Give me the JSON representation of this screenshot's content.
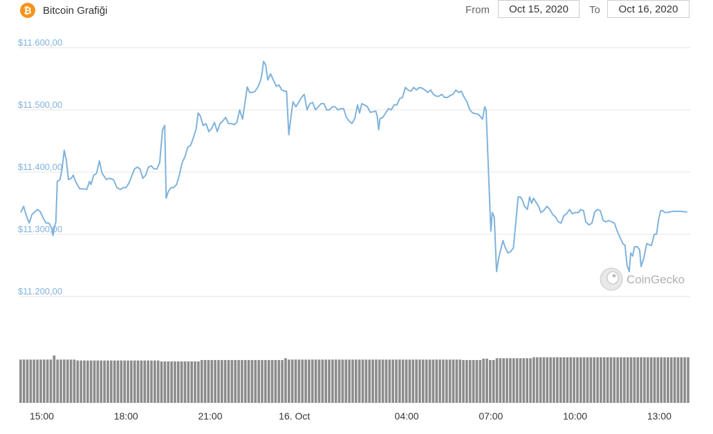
{
  "header": {
    "coin_icon_symbol": "₿",
    "title": "Bitcoin Grafiği",
    "from_label": "From",
    "from_value": "Oct 15, 2020",
    "to_label": "To",
    "to_value": "Oct 16, 2020"
  },
  "watermark": {
    "text": "CoinGecko",
    "icon": "gecko-logo-icon"
  },
  "colors": {
    "line": "#7fb2dc",
    "grid": "#e6e6e6",
    "volume": "#8c8c8c",
    "accent": "#f7931a"
  },
  "chart_data": {
    "type": "line",
    "ylim": [
      11200,
      11600
    ],
    "yticks": [
      {
        "value": 11600,
        "label": "$11.600,00"
      },
      {
        "value": 11500,
        "label": "$11.500,00"
      },
      {
        "value": 11400,
        "label": "$11.400,00"
      },
      {
        "value": 11300,
        "label": "$11.300,00"
      },
      {
        "value": 11200,
        "label": "$11.200,00"
      }
    ],
    "xlim": [
      14.2,
      38.1
    ],
    "xticks": [
      {
        "value": 15,
        "label": "15:00"
      },
      {
        "value": 18,
        "label": "18:00"
      },
      {
        "value": 21,
        "label": "21:00"
      },
      {
        "value": 24,
        "label": "16. Oct"
      },
      {
        "value": 28,
        "label": "04:00"
      },
      {
        "value": 31,
        "label": "07:00"
      },
      {
        "value": 34,
        "label": "10:00"
      },
      {
        "value": 37,
        "label": "13:00"
      }
    ],
    "grid": true,
    "series": [
      {
        "values": [
          [
            14.25,
            11335
          ],
          [
            14.35,
            11345
          ],
          [
            14.45,
            11330
          ],
          [
            14.55,
            11318
          ],
          [
            14.65,
            11332
          ],
          [
            14.75,
            11336
          ],
          [
            14.85,
            11340
          ],
          [
            14.95,
            11336
          ],
          [
            15.05,
            11326
          ],
          [
            15.15,
            11318
          ],
          [
            15.25,
            11318
          ],
          [
            15.35,
            11310
          ],
          [
            15.4,
            11298
          ],
          [
            15.45,
            11312
          ],
          [
            15.5,
            11320
          ],
          [
            15.55,
            11385
          ],
          [
            15.65,
            11388
          ],
          [
            15.72,
            11405
          ],
          [
            15.8,
            11435
          ],
          [
            15.87,
            11420
          ],
          [
            15.95,
            11388
          ],
          [
            16.05,
            11390
          ],
          [
            16.12,
            11395
          ],
          [
            16.2,
            11385
          ],
          [
            16.35,
            11373
          ],
          [
            16.5,
            11373
          ],
          [
            16.6,
            11372
          ],
          [
            16.7,
            11385
          ],
          [
            16.75,
            11380
          ],
          [
            16.85,
            11395
          ],
          [
            16.95,
            11398
          ],
          [
            17.05,
            11418
          ],
          [
            17.15,
            11398
          ],
          [
            17.3,
            11388
          ],
          [
            17.4,
            11390
          ],
          [
            17.55,
            11388
          ],
          [
            17.68,
            11375
          ],
          [
            17.8,
            11372
          ],
          [
            17.9,
            11375
          ],
          [
            18.0,
            11375
          ],
          [
            18.1,
            11382
          ],
          [
            18.2,
            11393
          ],
          [
            18.3,
            11405
          ],
          [
            18.4,
            11408
          ],
          [
            18.5,
            11405
          ],
          [
            18.6,
            11390
          ],
          [
            18.7,
            11395
          ],
          [
            18.8,
            11408
          ],
          [
            18.9,
            11410
          ],
          [
            19.0,
            11405
          ],
          [
            19.1,
            11405
          ],
          [
            19.2,
            11415
          ],
          [
            19.3,
            11468
          ],
          [
            19.38,
            11475
          ],
          [
            19.43,
            11358
          ],
          [
            19.5,
            11368
          ],
          [
            19.6,
            11375
          ],
          [
            19.7,
            11375
          ],
          [
            19.8,
            11380
          ],
          [
            19.9,
            11395
          ],
          [
            20.0,
            11415
          ],
          [
            20.1,
            11425
          ],
          [
            20.2,
            11440
          ],
          [
            20.3,
            11443
          ],
          [
            20.4,
            11455
          ],
          [
            20.5,
            11470
          ],
          [
            20.57,
            11495
          ],
          [
            20.65,
            11490
          ],
          [
            20.75,
            11475
          ],
          [
            20.85,
            11478
          ],
          [
            20.95,
            11465
          ],
          [
            21.05,
            11470
          ],
          [
            21.15,
            11480
          ],
          [
            21.25,
            11465
          ],
          [
            21.35,
            11478
          ],
          [
            21.45,
            11482
          ],
          [
            21.55,
            11488
          ],
          [
            21.65,
            11478
          ],
          [
            21.75,
            11478
          ],
          [
            21.85,
            11476
          ],
          [
            21.95,
            11480
          ],
          [
            22.05,
            11500
          ],
          [
            22.15,
            11485
          ],
          [
            22.25,
            11515
          ],
          [
            22.32,
            11537
          ],
          [
            22.4,
            11528
          ],
          [
            22.5,
            11528
          ],
          [
            22.6,
            11530
          ],
          [
            22.7,
            11537
          ],
          [
            22.8,
            11548
          ],
          [
            22.85,
            11560
          ],
          [
            22.9,
            11578
          ],
          [
            22.98,
            11572
          ],
          [
            23.05,
            11548
          ],
          [
            23.15,
            11558
          ],
          [
            23.25,
            11548
          ],
          [
            23.35,
            11538
          ],
          [
            23.45,
            11540
          ],
          [
            23.55,
            11532
          ],
          [
            23.65,
            11530
          ],
          [
            23.72,
            11530
          ],
          [
            23.8,
            11460
          ],
          [
            23.88,
            11490
          ],
          [
            23.95,
            11513
          ],
          [
            24.05,
            11505
          ],
          [
            24.15,
            11512
          ],
          [
            24.25,
            11520
          ],
          [
            24.35,
            11525
          ],
          [
            24.45,
            11500
          ],
          [
            24.55,
            11510
          ],
          [
            24.65,
            11512
          ],
          [
            24.75,
            11500
          ],
          [
            24.85,
            11505
          ],
          [
            24.95,
            11510
          ],
          [
            25.05,
            11510
          ],
          [
            25.15,
            11500
          ],
          [
            25.25,
            11500
          ],
          [
            25.35,
            11505
          ],
          [
            25.45,
            11505
          ],
          [
            25.55,
            11500
          ],
          [
            25.65,
            11502
          ],
          [
            25.75,
            11502
          ],
          [
            25.85,
            11488
          ],
          [
            25.95,
            11482
          ],
          [
            26.05,
            11478
          ],
          [
            26.15,
            11486
          ],
          [
            26.25,
            11508
          ],
          [
            26.32,
            11495
          ],
          [
            26.4,
            11510
          ],
          [
            26.5,
            11508
          ],
          [
            26.6,
            11505
          ],
          [
            26.7,
            11496
          ],
          [
            26.8,
            11497
          ],
          [
            26.9,
            11498
          ],
          [
            26.95,
            11490
          ],
          [
            27.0,
            11468
          ],
          [
            27.05,
            11486
          ],
          [
            27.15,
            11488
          ],
          [
            27.25,
            11495
          ],
          [
            27.35,
            11502
          ],
          [
            27.45,
            11500
          ],
          [
            27.55,
            11508
          ],
          [
            27.65,
            11508
          ],
          [
            27.75,
            11518
          ],
          [
            27.85,
            11520
          ],
          [
            27.95,
            11536
          ],
          [
            28.05,
            11532
          ],
          [
            28.15,
            11530
          ],
          [
            28.25,
            11536
          ],
          [
            28.35,
            11532
          ],
          [
            28.45,
            11536
          ],
          [
            28.55,
            11535
          ],
          [
            28.65,
            11532
          ],
          [
            28.75,
            11528
          ],
          [
            28.85,
            11532
          ],
          [
            28.95,
            11525
          ],
          [
            29.05,
            11522
          ],
          [
            29.15,
            11522
          ],
          [
            29.25,
            11525
          ],
          [
            29.35,
            11520
          ],
          [
            29.45,
            11520
          ],
          [
            29.55,
            11523
          ],
          [
            29.65,
            11525
          ],
          [
            29.75,
            11532
          ],
          [
            29.85,
            11528
          ],
          [
            29.95,
            11530
          ],
          [
            30.05,
            11520
          ],
          [
            30.15,
            11513
          ],
          [
            30.25,
            11500
          ],
          [
            30.35,
            11495
          ],
          [
            30.45,
            11494
          ],
          [
            30.55,
            11493
          ],
          [
            30.65,
            11488
          ],
          [
            30.7,
            11485
          ],
          [
            30.78,
            11505
          ],
          [
            30.83,
            11500
          ],
          [
            30.88,
            11440
          ],
          [
            30.95,
            11360
          ],
          [
            31.0,
            11305
          ],
          [
            31.05,
            11335
          ],
          [
            31.12,
            11328
          ],
          [
            31.2,
            11240
          ],
          [
            31.28,
            11262
          ],
          [
            31.35,
            11275
          ],
          [
            31.43,
            11290
          ],
          [
            31.5,
            11280
          ],
          [
            31.6,
            11270
          ],
          [
            31.7,
            11272
          ],
          [
            31.8,
            11278
          ],
          [
            31.9,
            11325
          ],
          [
            31.97,
            11360
          ],
          [
            32.05,
            11360
          ],
          [
            32.12,
            11355
          ],
          [
            32.2,
            11345
          ],
          [
            32.3,
            11340
          ],
          [
            32.38,
            11360
          ],
          [
            32.45,
            11350
          ],
          [
            32.52,
            11358
          ],
          [
            32.6,
            11352
          ],
          [
            32.7,
            11345
          ],
          [
            32.78,
            11335
          ],
          [
            32.88,
            11338
          ],
          [
            33.0,
            11345
          ],
          [
            33.1,
            11340
          ],
          [
            33.2,
            11332
          ],
          [
            33.3,
            11328
          ],
          [
            33.4,
            11320
          ],
          [
            33.5,
            11318
          ],
          [
            33.6,
            11330
          ],
          [
            33.7,
            11333
          ],
          [
            33.8,
            11340
          ],
          [
            33.9,
            11333
          ],
          [
            34.0,
            11335
          ],
          [
            34.12,
            11335
          ],
          [
            34.2,
            11340
          ],
          [
            34.3,
            11338
          ],
          [
            34.38,
            11320
          ],
          [
            34.5,
            11315
          ],
          [
            34.6,
            11318
          ],
          [
            34.7,
            11336
          ],
          [
            34.8,
            11340
          ],
          [
            34.9,
            11338
          ],
          [
            35.0,
            11322
          ],
          [
            35.1,
            11320
          ],
          [
            35.2,
            11322
          ],
          [
            35.3,
            11320
          ],
          [
            35.4,
            11318
          ],
          [
            35.5,
            11305
          ],
          [
            35.6,
            11295
          ],
          [
            35.7,
            11285
          ],
          [
            35.78,
            11282
          ],
          [
            35.85,
            11250
          ],
          [
            35.93,
            11240
          ],
          [
            35.98,
            11270
          ],
          [
            36.05,
            11265
          ],
          [
            36.12,
            11280
          ],
          [
            36.22,
            11280
          ],
          [
            36.3,
            11275
          ],
          [
            36.35,
            11248
          ],
          [
            36.45,
            11262
          ],
          [
            36.55,
            11285
          ],
          [
            36.65,
            11283
          ],
          [
            36.72,
            11282
          ],
          [
            36.82,
            11300
          ],
          [
            36.9,
            11300
          ],
          [
            36.98,
            11325
          ],
          [
            37.05,
            11338
          ],
          [
            37.12,
            11338
          ],
          [
            37.2,
            11335
          ],
          [
            37.28,
            11335
          ],
          [
            37.38,
            11336
          ],
          [
            37.5,
            11337
          ],
          [
            37.6,
            11337
          ],
          [
            37.7,
            11337
          ],
          [
            37.8,
            11337
          ],
          [
            37.9,
            11336
          ],
          [
            38.0,
            11336
          ]
        ]
      }
    ],
    "volume": {
      "segments": [
        {
          "from": 14.2,
          "to": 16.2,
          "level": 0.95
        },
        {
          "from": 16.2,
          "to": 19.2,
          "level": 0.93
        },
        {
          "from": 19.2,
          "to": 20.6,
          "level": 0.91
        },
        {
          "from": 20.6,
          "to": 23.7,
          "level": 0.94
        },
        {
          "from": 23.7,
          "to": 30.0,
          "level": 0.95
        },
        {
          "from": 30.0,
          "to": 31.2,
          "level": 0.94
        },
        {
          "from": 31.2,
          "to": 32.5,
          "level": 0.98
        },
        {
          "from": 32.5,
          "to": 38.1,
          "level": 1.0
        }
      ],
      "spikes": [
        {
          "x": 15.5,
          "level": 1.04
        },
        {
          "x": 23.7,
          "level": 0.98
        },
        {
          "x": 30.8,
          "level": 0.97
        }
      ]
    }
  }
}
